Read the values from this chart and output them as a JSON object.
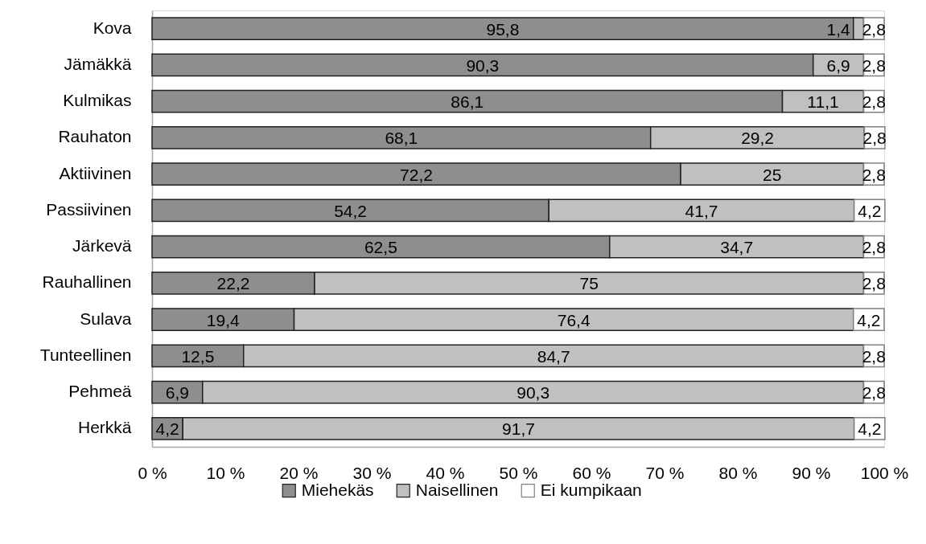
{
  "chart_data": {
    "type": "bar",
    "orientation": "horizontal",
    "stacked": true,
    "categories": [
      "Kova",
      "Jämäkkä",
      "Kulmikas",
      "Rauhaton",
      "Aktiivinen",
      "Passiivinen",
      "Järkevä",
      "Rauhallinen",
      "Sulava",
      "Tunteellinen",
      "Pehmeä",
      "Herkkä"
    ],
    "series": [
      {
        "name": "Miehekäs",
        "color": "#8e8e8e",
        "values": [
          95.8,
          90.3,
          86.1,
          68.1,
          72.2,
          54.2,
          62.5,
          22.2,
          19.4,
          12.5,
          6.9,
          4.2
        ],
        "value_labels": [
          "95,8",
          "90,3",
          "86,1",
          "68,1",
          "72,2",
          "54,2",
          "62,5",
          "22,2",
          "19,4",
          "12,5",
          "6,9",
          "4,2"
        ]
      },
      {
        "name": "Naisellinen",
        "color": "#c0c0c0",
        "values": [
          1.4,
          6.9,
          11.1,
          29.2,
          25,
          41.7,
          34.7,
          75,
          76.4,
          84.7,
          90.3,
          91.7
        ],
        "value_labels": [
          "1,4",
          "6,9",
          "11,1",
          "29,2",
          "25",
          "41,7",
          "34,7",
          "75",
          "76,4",
          "84,7",
          "90,3",
          "91,7"
        ]
      },
      {
        "name": "Ei kumpikaan",
        "color": "#ffffff",
        "values": [
          2.8,
          2.8,
          2.8,
          2.8,
          2.8,
          4.2,
          2.8,
          2.8,
          4.2,
          2.8,
          2.8,
          4.2
        ],
        "value_labels": [
          "2,8",
          "2,8",
          "2,8",
          "2,8",
          "2,8",
          "4,2",
          "2,8",
          "2,8",
          "4,2",
          "2,8",
          "2,8",
          "4,2"
        ]
      }
    ],
    "xlim": [
      0,
      100
    ],
    "xticks": [
      {
        "value": 0,
        "label": "0 %"
      },
      {
        "value": 10,
        "label": "10 %"
      },
      {
        "value": 20,
        "label": "20 %"
      },
      {
        "value": 30,
        "label": "30 %"
      },
      {
        "value": 40,
        "label": "40 %"
      },
      {
        "value": 50,
        "label": "50 %"
      },
      {
        "value": 60,
        "label": "60 %"
      },
      {
        "value": 70,
        "label": "70 %"
      },
      {
        "value": 80,
        "label": "80 %"
      },
      {
        "value": 90,
        "label": "90 %"
      },
      {
        "value": 100,
        "label": "100 %"
      }
    ],
    "legend": "bottom"
  }
}
